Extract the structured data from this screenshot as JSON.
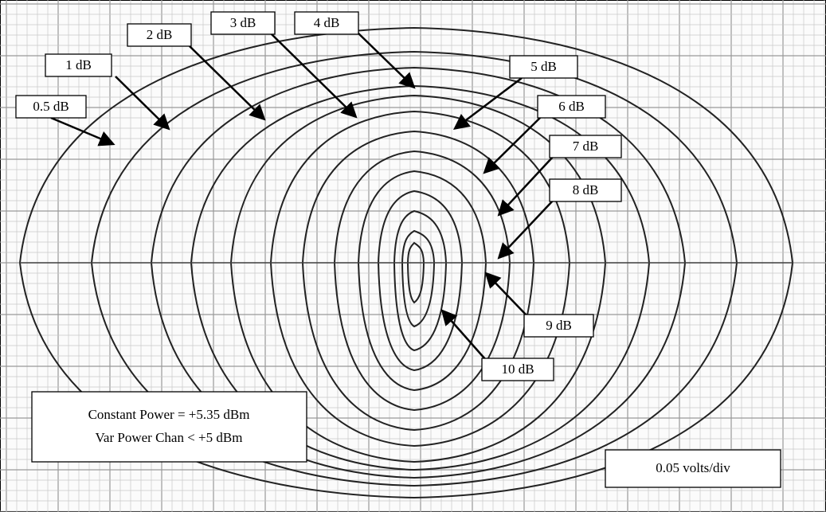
{
  "labels": [
    "0.5 dB",
    "1 dB",
    "2 dB",
    "3 dB",
    "4 dB",
    "5 dB",
    "6 dB",
    "7 dB",
    "8 dB",
    "9 dB",
    "10 dB"
  ],
  "note": {
    "lines": [
      "Constant Power = +5.35 dBm",
      "Var Power Chan < +5 dBm"
    ]
  },
  "scale": "0.05 volts/div"
}
